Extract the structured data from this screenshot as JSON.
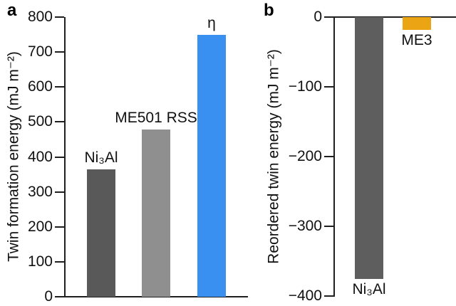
{
  "figure": {
    "background": "#ffffff",
    "axis_color": "#1f1f1f",
    "text_color": "#111111",
    "panels": [
      {
        "letter": "a"
      },
      {
        "letter": "b"
      }
    ]
  },
  "chart_data": [
    {
      "panel": "a",
      "type": "bar",
      "title": "",
      "xlabel": "",
      "ylabel": "Twin formation energy (mJ m⁻²)",
      "ylim": [
        0,
        800
      ],
      "yticks": [
        800,
        700,
        600,
        500,
        400,
        300,
        200,
        100,
        0
      ],
      "categories": [
        "Ni₃Al",
        "ME501 RSS",
        "η"
      ],
      "values": [
        365,
        478,
        750
      ],
      "bar_colors": [
        "#595959",
        "#8f8f8f",
        "#3a90f0"
      ],
      "category_label_position": "above",
      "grid": false,
      "legend": "none"
    },
    {
      "panel": "b",
      "type": "bar",
      "title": "",
      "xlabel": "",
      "ylabel": "Reordered twin energy (mJ m⁻²)",
      "ylim": [
        -400,
        0
      ],
      "yticks": [
        0,
        -100,
        -200,
        -300,
        -400
      ],
      "categories": [
        "Ni₃Al",
        "ME3"
      ],
      "values": [
        -375,
        -18
      ],
      "bar_colors": [
        "#5e5e5e",
        "#eba414"
      ],
      "category_label_position": "below",
      "grid": false,
      "legend": "none"
    }
  ]
}
